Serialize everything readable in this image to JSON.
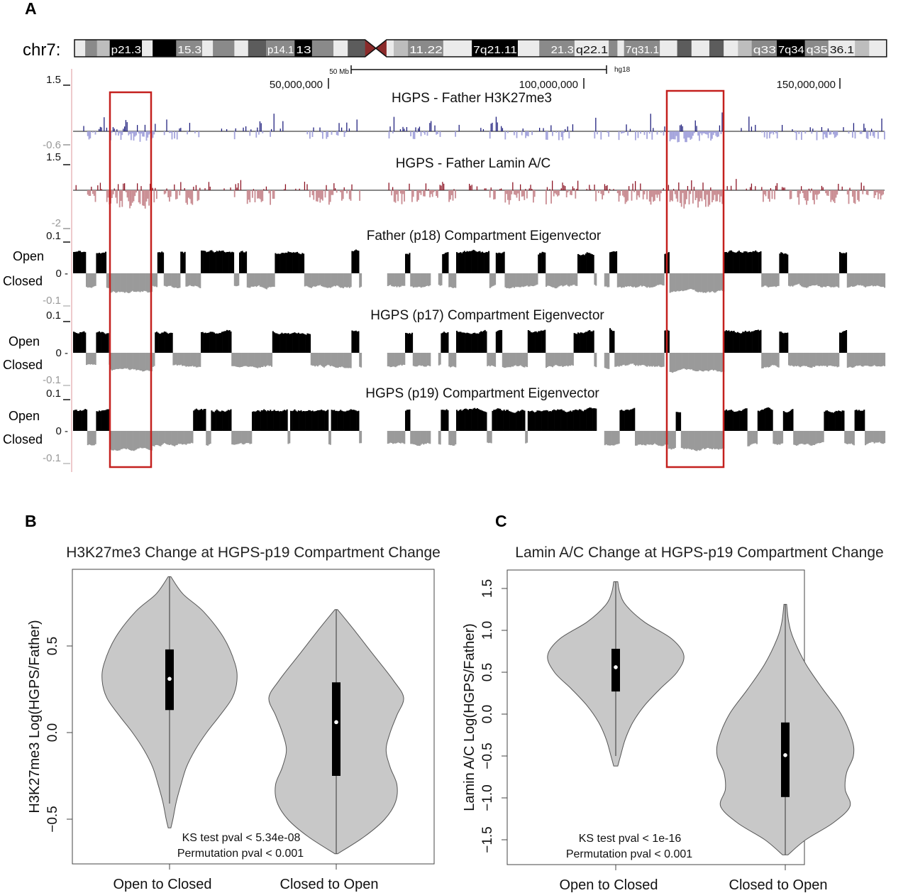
{
  "chart_data": [
    {
      "type": "genome-tracks",
      "panel": "A",
      "chromosome": "chr7:",
      "assembly": "hg18",
      "scale_bar": "50 Mb",
      "coordinates": [
        "50,000,000",
        "100,000,000",
        "150,000,000"
      ],
      "coordinate_values": [
        50000000,
        100000000,
        150000000
      ],
      "chrom_length_mb": 159,
      "centromere_mb": [
        56.9,
        61.1
      ],
      "ideogram_bands": [
        [
          0,
          2.1,
          "gneg",
          ""
        ],
        [
          2.1,
          4.4,
          "gpos50",
          ""
        ],
        [
          4.4,
          6.9,
          "gpos25",
          ""
        ],
        [
          6.9,
          13.2,
          "gpos100",
          "p21.3"
        ],
        [
          13.2,
          15.3,
          "gneg",
          ""
        ],
        [
          15.3,
          19.9,
          "gpos100",
          ""
        ],
        [
          19.9,
          25,
          "gpos50",
          "15.3"
        ],
        [
          25,
          27.1,
          "gneg",
          ""
        ],
        [
          27.1,
          31.3,
          "gpos50",
          ""
        ],
        [
          31.3,
          34,
          "gneg",
          ""
        ],
        [
          34,
          37.5,
          "gpos75",
          ""
        ],
        [
          37.5,
          43.1,
          "gpos50",
          "p14.1"
        ],
        [
          43.1,
          46.5,
          "gpos100",
          "13"
        ],
        [
          46.5,
          50.7,
          "gpos50",
          ""
        ],
        [
          50.7,
          53.5,
          "gneg",
          ""
        ],
        [
          53.5,
          56.9,
          "gpos75",
          ""
        ],
        [
          61.1,
          62.5,
          "gneg",
          ""
        ],
        [
          62.5,
          65.3,
          "gpos25",
          ""
        ],
        [
          65.3,
          72.2,
          "gpos50",
          "11.22"
        ],
        [
          72.2,
          77.8,
          "gneg",
          ""
        ],
        [
          77.8,
          86.8,
          "gpos100",
          "7q21.11"
        ],
        [
          86.8,
          91,
          "gneg",
          ""
        ],
        [
          91,
          93,
          "gpos50",
          ""
        ],
        [
          93,
          97.9,
          "gpos50",
          "21.3"
        ],
        [
          97.9,
          104.6,
          "gneg",
          "q22.1"
        ],
        [
          104.6,
          106.3,
          "gpos50",
          ""
        ],
        [
          106.3,
          107.6,
          "gneg",
          ""
        ],
        [
          107.6,
          114.6,
          "gpos50",
          "7q31.1"
        ],
        [
          114.6,
          118,
          "gneg",
          ""
        ],
        [
          118,
          120.8,
          "gpos75",
          ""
        ],
        [
          120.8,
          124.3,
          "gneg",
          ""
        ],
        [
          124.3,
          127.1,
          "gpos75",
          ""
        ],
        [
          127.1,
          129.9,
          "gneg",
          ""
        ],
        [
          129.9,
          132.6,
          "gpos25",
          ""
        ],
        [
          132.6,
          137.5,
          "gpos50",
          "q33"
        ],
        [
          137.5,
          143,
          "gpos100",
          "7q34"
        ],
        [
          143,
          147.6,
          "gpos50",
          "q35"
        ],
        [
          147.6,
          152.8,
          "gneg",
          "36.1"
        ],
        [
          152.8,
          155.6,
          "gpos25",
          ""
        ],
        [
          155.6,
          159,
          "gneg",
          ""
        ]
      ],
      "highlight_regions_mb": [
        [
          7.2,
          15.3
        ],
        [
          116.3,
          127.4
        ]
      ],
      "tracks": [
        {
          "id": "h3k27",
          "title": "HGPS - Father  H3K27me3",
          "ymax": "1.5",
          "ymin": "-0.6",
          "range": [
            -0.6,
            1.5
          ],
          "pos_color": "#1c1c7c",
          "neg_color": "#a4a4dc"
        },
        {
          "id": "lamin",
          "title": "HGPS - Father Lamin A/C",
          "ymax": "1.5",
          "ymin": "-2",
          "range": [
            -2,
            1.5
          ],
          "pos_color": "#8a1020",
          "neg_color": "#c98c92"
        },
        {
          "id": "p18",
          "title": "Father (p18) Compartment Eigenvector",
          "ymax": "0.1",
          "zero": "0 -",
          "ymin": "-0.1",
          "open_label": "Open",
          "closed_label": "Closed",
          "range": [
            -0.1,
            0.1
          ],
          "open_segments_mb": [
            [
              0,
              2.4
            ],
            [
              4.4,
              6.5
            ],
            [
              16.3,
              17.6
            ],
            [
              21,
              21.8
            ],
            [
              25,
              31.3
            ],
            [
              32.4,
              34
            ],
            [
              39.3,
              45.1
            ],
            [
              54.4,
              55.8
            ],
            [
              64.9,
              66
            ],
            [
              72.2,
              73.3
            ],
            [
              75,
              81.3
            ],
            [
              82.6,
              84.3
            ],
            [
              91,
              92.4
            ],
            [
              98.6,
              101.8
            ],
            [
              104.9,
              106.3
            ],
            [
              115.7,
              116.7
            ],
            [
              127.4,
              134.7
            ],
            [
              138.2,
              139.9
            ],
            [
              150,
              151.4
            ]
          ],
          "gaps_mb": [
            [
              56.4,
              61.5
            ],
            [
              70,
              71.5
            ],
            [
              102.5,
              104
            ]
          ]
        },
        {
          "id": "p17",
          "title": "HGPS (p17) Compartment Eigenvector",
          "ymax": "0.1",
          "zero": "0 -",
          "ymin": "-0.1",
          "open_label": "Open",
          "closed_label": "Closed",
          "range": [
            -0.1,
            0.1
          ],
          "open_segments_mb": [
            [
              0,
              2.4
            ],
            [
              4.4,
              6.8
            ],
            [
              16,
              19.3
            ],
            [
              25,
              31
            ],
            [
              39,
              46.3
            ],
            [
              54.4,
              55.8
            ],
            [
              64.9,
              66.3
            ],
            [
              72,
              73.3
            ],
            [
              75,
              81
            ],
            [
              82.6,
              84
            ],
            [
              89,
              92.3
            ],
            [
              98,
              102
            ],
            [
              104.9,
              106
            ],
            [
              115.7,
              116.7
            ],
            [
              127.4,
              134.7
            ],
            [
              138.2,
              140
            ],
            [
              150,
              151.4
            ]
          ],
          "gaps_mb": [
            [
              56.4,
              61.5
            ],
            [
              70,
              71.5
            ],
            [
              102.5,
              104
            ]
          ]
        },
        {
          "id": "p19",
          "title": "HGPS (p19) Compartment Eigenvector",
          "ymax": "0.1",
          "zero": "0 -",
          "ymin": "-0.1",
          "open_label": "Open",
          "closed_label": "Closed",
          "range": [
            -0.1,
            0.1
          ],
          "open_segments_mb": [
            [
              0,
              2.6
            ],
            [
              4.4,
              7.1
            ],
            [
              23.5,
              26
            ],
            [
              27,
              31
            ],
            [
              35,
              42
            ],
            [
              42.5,
              50
            ],
            [
              50.5,
              56
            ],
            [
              64.9,
              66
            ],
            [
              72,
              73.3
            ],
            [
              75,
              81
            ],
            [
              82,
              88.5
            ],
            [
              89,
              98
            ],
            [
              98,
              103
            ],
            [
              107,
              110
            ],
            [
              118,
              119
            ],
            [
              127.3,
              132
            ],
            [
              134,
              137
            ],
            [
              139,
              141
            ],
            [
              147,
              151
            ],
            [
              153,
              155
            ]
          ],
          "gaps_mb": [
            [
              56.4,
              61.5
            ],
            [
              70,
              71.5
            ],
            [
              102.5,
              104
            ]
          ]
        }
      ]
    },
    {
      "type": "violin",
      "panel": "B",
      "title": "H3K27me3 Change at HGPS-p19 Compartment Change",
      "ylabel": "H3K27me3 Log(HGPS/Father)",
      "ylim": [
        -0.66,
        1.04
      ],
      "yticks": [
        -0.5,
        0.0,
        0.5
      ],
      "ytick_labels": [
        "−0.5",
        "0.0",
        "0.5"
      ],
      "categories": [
        "Open to Closed",
        "Closed to Open"
      ],
      "annotations": [
        "KS test pval < 5.34e-08",
        "Permutation pval  < 0.001"
      ],
      "violins": [
        {
          "name": "Open to Closed",
          "min": -0.55,
          "max": 0.9,
          "q1": 0.13,
          "median": 0.31,
          "q3": 0.48,
          "whisker_low": -0.41,
          "density": [
            [
              0.9,
              0.02
            ],
            [
              0.8,
              0.2
            ],
            [
              0.7,
              0.5
            ],
            [
              0.55,
              0.8
            ],
            [
              0.4,
              0.97
            ],
            [
              0.3,
              1.0
            ],
            [
              0.2,
              0.93
            ],
            [
              0.1,
              0.75
            ],
            [
              0.0,
              0.55
            ],
            [
              -0.1,
              0.38
            ],
            [
              -0.2,
              0.25
            ],
            [
              -0.3,
              0.17
            ],
            [
              -0.4,
              0.1
            ],
            [
              -0.5,
              0.05
            ],
            [
              -0.55,
              0.02
            ]
          ]
        },
        {
          "name": "Closed to Open",
          "min": -0.7,
          "max": 0.71,
          "q1": -0.25,
          "median": 0.06,
          "q3": 0.29,
          "whisker_low": -0.7,
          "density": [
            [
              0.71,
              0.02
            ],
            [
              0.6,
              0.25
            ],
            [
              0.45,
              0.55
            ],
            [
              0.3,
              0.85
            ],
            [
              0.2,
              1.0
            ],
            [
              0.1,
              0.9
            ],
            [
              0.0,
              0.8
            ],
            [
              -0.1,
              0.74
            ],
            [
              -0.2,
              0.8
            ],
            [
              -0.3,
              0.9
            ],
            [
              -0.4,
              0.88
            ],
            [
              -0.5,
              0.72
            ],
            [
              -0.6,
              0.42
            ],
            [
              -0.7,
              0.02
            ]
          ]
        }
      ]
    },
    {
      "type": "violin",
      "panel": "C",
      "title": "Lamin A/C Change at HGPS-p19 Compartment Change",
      "ylabel": "Lamin A/C Log(HGPS/Father)",
      "ylim": [
        -1.8,
        1.72
      ],
      "yticks": [
        -1.5,
        -1.0,
        -0.5,
        0.0,
        0.5,
        1.0,
        1.5
      ],
      "ytick_labels": [
        "−1.5",
        "−1.0",
        "−0.5",
        "0.0",
        "0.5",
        "1.0",
        "1.5"
      ],
      "categories": [
        "Open to Closed",
        "Closed to Open"
      ],
      "annotations": [
        "KS test pval < 1e-16",
        "Permutation pval  < 0.001"
      ],
      "violins": [
        {
          "name": "Open to Closed",
          "min": -0.62,
          "max": 1.58,
          "q1": 0.27,
          "median": 0.56,
          "q3": 0.78,
          "whisker_low": -0.5,
          "density": [
            [
              1.58,
              0.03
            ],
            [
              1.45,
              0.06
            ],
            [
              1.3,
              0.15
            ],
            [
              1.1,
              0.42
            ],
            [
              0.9,
              0.82
            ],
            [
              0.7,
              1.0
            ],
            [
              0.5,
              0.9
            ],
            [
              0.3,
              0.65
            ],
            [
              0.1,
              0.42
            ],
            [
              -0.1,
              0.25
            ],
            [
              -0.3,
              0.14
            ],
            [
              -0.5,
              0.07
            ],
            [
              -0.62,
              0.03
            ]
          ]
        },
        {
          "name": "Closed to Open",
          "min": -1.68,
          "max": 1.31,
          "q1": -0.99,
          "median": -0.49,
          "q3": -0.1,
          "whisker_low": -1.68,
          "density": [
            [
              1.31,
              0.02
            ],
            [
              1.1,
              0.05
            ],
            [
              0.9,
              0.12
            ],
            [
              0.6,
              0.3
            ],
            [
              0.3,
              0.55
            ],
            [
              0.0,
              0.82
            ],
            [
              -0.3,
              0.98
            ],
            [
              -0.5,
              1.0
            ],
            [
              -0.7,
              0.9
            ],
            [
              -0.9,
              0.88
            ],
            [
              -1.1,
              0.95
            ],
            [
              -1.3,
              0.7
            ],
            [
              -1.5,
              0.3
            ],
            [
              -1.68,
              0.04
            ]
          ]
        }
      ]
    }
  ],
  "labels": {
    "panel_a": "A",
    "panel_b": "B",
    "panel_c": "C"
  },
  "colors": {
    "highlight": "#c4201e",
    "open": "#000000",
    "closed": "#9a9a9a",
    "violin_fill": "#c8c8c8",
    "centromere": "#8b2a2a"
  }
}
